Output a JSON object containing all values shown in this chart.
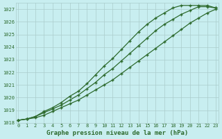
{
  "x": [
    0,
    1,
    2,
    3,
    4,
    5,
    6,
    7,
    8,
    9,
    10,
    11,
    12,
    13,
    14,
    15,
    16,
    17,
    18,
    19,
    20,
    21,
    22,
    23
  ],
  "line_top": [
    1018.2,
    1018.3,
    1018.5,
    1018.9,
    1019.2,
    1019.6,
    1020.1,
    1020.5,
    1021.1,
    1021.8,
    1022.5,
    1023.1,
    1023.8,
    1024.5,
    1025.2,
    1025.8,
    1026.3,
    1026.7,
    1027.1,
    1027.3,
    1027.3,
    1027.3,
    1027.3,
    1027.1
  ],
  "line_mid": [
    1018.2,
    1018.3,
    1018.5,
    1018.8,
    1019.1,
    1019.4,
    1019.8,
    1020.2,
    1020.7,
    1021.2,
    1021.8,
    1022.3,
    1022.9,
    1023.5,
    1024.1,
    1024.7,
    1025.3,
    1025.8,
    1026.2,
    1026.6,
    1026.9,
    1027.2,
    1027.2,
    1027.1
  ],
  "line_bot": [
    1018.2,
    1018.3,
    1018.4,
    1018.6,
    1018.9,
    1019.2,
    1019.5,
    1019.8,
    1020.2,
    1020.6,
    1021.0,
    1021.4,
    1021.9,
    1022.4,
    1022.9,
    1023.4,
    1023.9,
    1024.4,
    1024.9,
    1025.4,
    1025.9,
    1026.3,
    1026.7,
    1027.0
  ],
  "ylim": [
    1018,
    1027.5
  ],
  "yticks": [
    1018,
    1019,
    1020,
    1021,
    1022,
    1023,
    1024,
    1025,
    1026,
    1027
  ],
  "xlim": [
    -0.3,
    23.3
  ],
  "xticks": [
    0,
    1,
    2,
    3,
    4,
    5,
    6,
    7,
    8,
    9,
    10,
    11,
    12,
    13,
    14,
    15,
    16,
    17,
    18,
    19,
    20,
    21,
    22,
    23
  ],
  "xlabel": "Graphe pression niveau de la mer (hPa)",
  "line_color": "#2d6a2d",
  "bg_color": "#c8eef0",
  "grid_color": "#aacccc",
  "marker": "+"
}
